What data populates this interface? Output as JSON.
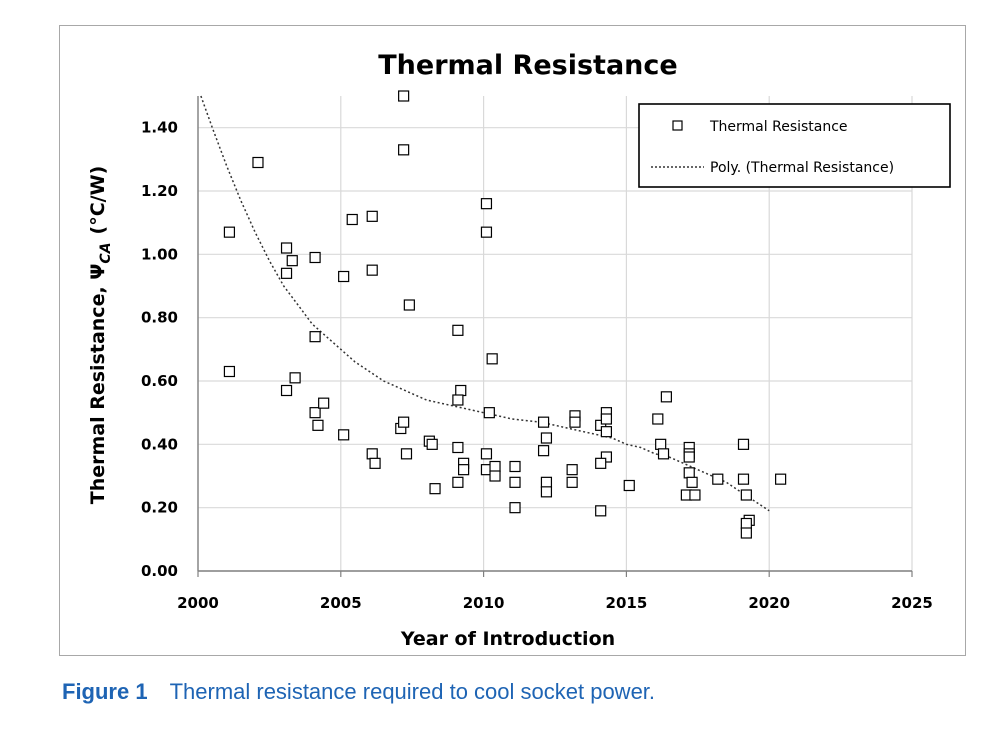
{
  "chart_data": {
    "type": "scatter",
    "title": "Thermal Resistance",
    "xlabel": "Year of Introduction",
    "ylabel_main": "Thermal Resistance, Ψ",
    "ylabel_sub": "CA",
    "ylabel_unit": "(°C/W)",
    "xlim": [
      2000,
      2025
    ],
    "ylim": [
      0,
      1.5
    ],
    "x_ticks": [
      "2000",
      "2005",
      "2010",
      "2015",
      "2020",
      "2025"
    ],
    "y_ticks": [
      "0.00",
      "0.20",
      "0.40",
      "0.60",
      "0.80",
      "1.00",
      "1.20",
      "1.40"
    ],
    "grid": true,
    "legend_position": "top-right",
    "series": [
      {
        "name": "Thermal Resistance",
        "marker": "open-square",
        "points": [
          [
            2001.1,
            1.07
          ],
          [
            2001.1,
            0.63
          ],
          [
            2002.1,
            1.29
          ],
          [
            2003.1,
            1.02
          ],
          [
            2003.1,
            0.94
          ],
          [
            2003.1,
            0.57
          ],
          [
            2003.3,
            0.98
          ],
          [
            2003.4,
            0.61
          ],
          [
            2004.1,
            0.99
          ],
          [
            2004.1,
            0.74
          ],
          [
            2004.1,
            0.5
          ],
          [
            2004.2,
            0.46
          ],
          [
            2004.4,
            0.53
          ],
          [
            2005.1,
            0.93
          ],
          [
            2005.1,
            0.43
          ],
          [
            2005.4,
            1.11
          ],
          [
            2006.1,
            1.12
          ],
          [
            2006.1,
            0.95
          ],
          [
            2006.1,
            0.37
          ],
          [
            2006.2,
            0.34
          ],
          [
            2007.2,
            1.5
          ],
          [
            2007.2,
            1.33
          ],
          [
            2007.1,
            0.45
          ],
          [
            2007.2,
            0.47
          ],
          [
            2007.3,
            0.37
          ],
          [
            2007.4,
            0.84
          ],
          [
            2008.1,
            0.41
          ],
          [
            2008.2,
            0.4
          ],
          [
            2008.3,
            0.26
          ],
          [
            2009.1,
            0.76
          ],
          [
            2009.2,
            0.57
          ],
          [
            2009.1,
            0.54
          ],
          [
            2009.1,
            0.39
          ],
          [
            2009.3,
            0.34
          ],
          [
            2009.3,
            0.32
          ],
          [
            2009.1,
            0.28
          ],
          [
            2010.1,
            1.16
          ],
          [
            2010.1,
            1.07
          ],
          [
            2010.3,
            0.67
          ],
          [
            2010.2,
            0.5
          ],
          [
            2010.1,
            0.37
          ],
          [
            2010.1,
            0.32
          ],
          [
            2010.4,
            0.33
          ],
          [
            2010.4,
            0.3
          ],
          [
            2011.1,
            0.33
          ],
          [
            2011.1,
            0.28
          ],
          [
            2011.1,
            0.2
          ],
          [
            2012.1,
            0.47
          ],
          [
            2012.2,
            0.42
          ],
          [
            2012.1,
            0.38
          ],
          [
            2012.2,
            0.28
          ],
          [
            2012.2,
            0.25
          ],
          [
            2013.2,
            0.49
          ],
          [
            2013.2,
            0.47
          ],
          [
            2013.1,
            0.32
          ],
          [
            2013.1,
            0.28
          ],
          [
            2014.1,
            0.46
          ],
          [
            2014.3,
            0.5
          ],
          [
            2014.3,
            0.48
          ],
          [
            2014.3,
            0.44
          ],
          [
            2014.3,
            0.36
          ],
          [
            2014.1,
            0.34
          ],
          [
            2014.1,
            0.19
          ],
          [
            2015.1,
            0.27
          ],
          [
            2016.1,
            0.48
          ],
          [
            2016.2,
            0.4
          ],
          [
            2016.3,
            0.37
          ],
          [
            2016.4,
            0.55
          ],
          [
            2017.2,
            0.39
          ],
          [
            2017.2,
            0.37
          ],
          [
            2017.2,
            0.36
          ],
          [
            2017.2,
            0.31
          ],
          [
            2017.3,
            0.28
          ],
          [
            2017.1,
            0.24
          ],
          [
            2017.4,
            0.24
          ],
          [
            2018.2,
            0.29
          ],
          [
            2019.1,
            0.4
          ],
          [
            2019.1,
            0.29
          ],
          [
            2019.2,
            0.24
          ],
          [
            2019.3,
            0.16
          ],
          [
            2019.2,
            0.15
          ],
          [
            2019.2,
            0.12
          ],
          [
            2020.4,
            0.29
          ]
        ]
      },
      {
        "name": "Poly. (Thermal Resistance)",
        "line": "dotted",
        "points": [
          [
            2000.1,
            1.5
          ],
          [
            2000.5,
            1.4
          ],
          [
            2001.0,
            1.28
          ],
          [
            2001.5,
            1.17
          ],
          [
            2002.0,
            1.07
          ],
          [
            2002.5,
            0.98
          ],
          [
            2003.0,
            0.9
          ],
          [
            2003.5,
            0.84
          ],
          [
            2004.0,
            0.78
          ],
          [
            2004.5,
            0.74
          ],
          [
            2005.0,
            0.7
          ],
          [
            2005.5,
            0.66
          ],
          [
            2006.0,
            0.63
          ],
          [
            2006.5,
            0.6
          ],
          [
            2007.0,
            0.58
          ],
          [
            2007.5,
            0.56
          ],
          [
            2008.0,
            0.54
          ],
          [
            2008.5,
            0.53
          ],
          [
            2009.0,
            0.52
          ],
          [
            2009.5,
            0.51
          ],
          [
            2010.0,
            0.5
          ],
          [
            2010.5,
            0.49
          ],
          [
            2011.0,
            0.48
          ],
          [
            2011.5,
            0.475
          ],
          [
            2012.0,
            0.47
          ],
          [
            2012.5,
            0.46
          ],
          [
            2013.0,
            0.45
          ],
          [
            2013.5,
            0.44
          ],
          [
            2014.0,
            0.43
          ],
          [
            2014.5,
            0.42
          ],
          [
            2015.0,
            0.4
          ],
          [
            2015.5,
            0.39
          ],
          [
            2016.0,
            0.37
          ],
          [
            2016.5,
            0.36
          ],
          [
            2017.0,
            0.34
          ],
          [
            2017.5,
            0.32
          ],
          [
            2018.0,
            0.3
          ],
          [
            2018.5,
            0.28
          ],
          [
            2019.0,
            0.25
          ],
          [
            2019.5,
            0.22
          ],
          [
            2020.0,
            0.19
          ]
        ]
      }
    ]
  },
  "caption": {
    "label": "Figure 1",
    "text": "Thermal resistance required to cool socket power."
  }
}
